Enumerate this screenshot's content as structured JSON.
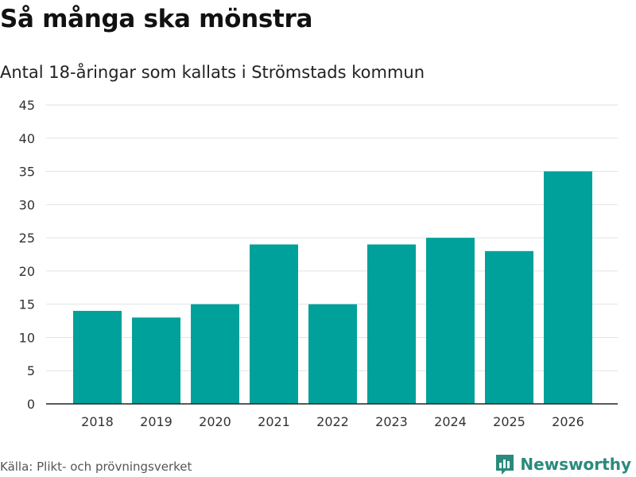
{
  "chart_data": {
    "type": "bar",
    "title": "Så många ska mönstra",
    "subtitle": "Antal 18-åringar som kallats i Strömstads kommun",
    "categories": [
      "2018",
      "2019",
      "2020",
      "2021",
      "2022",
      "2023",
      "2024",
      "2025",
      "2026"
    ],
    "values": [
      14,
      13,
      15,
      24,
      15,
      24,
      25,
      23,
      35
    ],
    "ylim": [
      0,
      45
    ],
    "yticks": [
      "0",
      "5",
      "10",
      "15",
      "20",
      "25",
      "30",
      "35",
      "40",
      "45"
    ],
    "xlabel": "",
    "ylabel": "",
    "grid": true,
    "bar_color": "#00a19a"
  },
  "footer": {
    "source": "Källa: Plikt- och prövningsverket",
    "brand": "Newsworthy",
    "brand_icon": "newsworthy-logo-icon"
  }
}
